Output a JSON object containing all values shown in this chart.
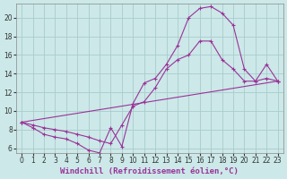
{
  "background_color": "#cce8e8",
  "grid_color": "#aacccc",
  "line_color": "#993399",
  "xlabel": "Windchill (Refroidissement éolien,°C)",
  "xlabel_fontsize": 6.5,
  "xtick_fontsize": 5.5,
  "ytick_fontsize": 5.5,
  "xlim": [
    -0.5,
    23.5
  ],
  "ylim": [
    5.5,
    21.5
  ],
  "yticks": [
    6,
    8,
    10,
    12,
    14,
    16,
    18,
    20
  ],
  "xticks": [
    0,
    1,
    2,
    3,
    4,
    5,
    6,
    7,
    8,
    9,
    10,
    11,
    12,
    13,
    14,
    15,
    16,
    17,
    18,
    19,
    20,
    21,
    22,
    23
  ],
  "curve1_x": [
    0,
    1,
    2,
    3,
    4,
    5,
    6,
    7,
    8,
    9,
    10,
    11,
    12,
    13,
    14,
    15,
    16,
    17,
    18,
    19,
    20,
    21,
    22,
    23
  ],
  "curve1_y": [
    8.8,
    8.2,
    7.5,
    7.2,
    7.0,
    6.5,
    5.8,
    5.5,
    8.2,
    6.2,
    10.8,
    13.0,
    13.5,
    15.0,
    17.0,
    20.0,
    21.0,
    21.2,
    20.5,
    19.2,
    14.5,
    13.2,
    13.5,
    13.2
  ],
  "curve2_x": [
    0,
    1,
    2,
    3,
    4,
    5,
    6,
    7,
    8,
    9,
    10,
    11,
    12,
    13,
    14,
    15,
    16,
    17,
    18,
    19,
    20,
    21,
    22,
    23
  ],
  "curve2_y": [
    8.8,
    8.5,
    8.2,
    8.0,
    7.8,
    7.5,
    7.2,
    6.8,
    6.5,
    8.5,
    10.5,
    11.0,
    12.5,
    14.5,
    15.5,
    16.0,
    17.5,
    17.5,
    15.5,
    14.5,
    13.2,
    13.2,
    15.0,
    13.2
  ],
  "curve3_x": [
    0,
    23
  ],
  "curve3_y": [
    8.8,
    13.2
  ],
  "marker_size": 2.5
}
